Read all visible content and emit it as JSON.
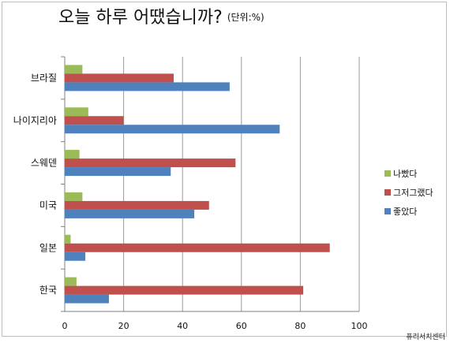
{
  "title": "오늘 하루 어땠습니까?",
  "subtitle": "(단위:%)",
  "source": "퓨리서치센터",
  "chart_data": {
    "type": "bar",
    "orientation": "horizontal",
    "categories": [
      "브라질",
      "나이지리아",
      "스웨덴",
      "미국",
      "일본",
      "한국"
    ],
    "series": [
      {
        "name": "나빴다",
        "color": "#9bbb59",
        "values": [
          6,
          8,
          5,
          6,
          2,
          4
        ]
      },
      {
        "name": "그저그랬다",
        "color": "#c0504d",
        "values": [
          37,
          20,
          58,
          49,
          90,
          81
        ]
      },
      {
        "name": "좋았다",
        "color": "#4f81bd",
        "values": [
          56,
          73,
          36,
          44,
          7,
          15
        ]
      }
    ],
    "xlim": [
      0,
      100
    ],
    "xticks": [
      0,
      20,
      40,
      60,
      80,
      100
    ],
    "grid": "vertical",
    "legend": "right"
  }
}
